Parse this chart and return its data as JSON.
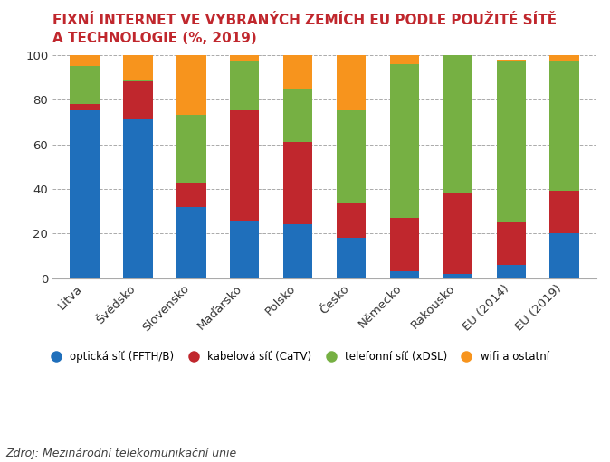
{
  "title": "FIXNÍ INTERNET VE VYBRANÝCH ZEMÍCH EU PODLE POUŽITÉ SÍTĚ\nA TECHNOLOGIE (%, 2019)",
  "categories": [
    "Litva",
    "Švédsko",
    "Slovensko",
    "Maďarsko",
    "Polsko",
    "Česko",
    "Německo",
    "Rakousko",
    "EU (2014)",
    "EU (2019)"
  ],
  "optical": [
    75,
    71,
    32,
    26,
    24,
    18,
    3,
    2,
    6,
    20
  ],
  "cable": [
    3,
    17,
    11,
    49,
    37,
    16,
    24,
    36,
    19,
    19
  ],
  "dsl": [
    17,
    1,
    30,
    22,
    24,
    41,
    69,
    62,
    72,
    58
  ],
  "wifi": [
    5,
    11,
    27,
    3,
    15,
    25,
    4,
    0,
    1,
    3
  ],
  "color_optical": "#1f6fbb",
  "color_cable": "#c0272d",
  "color_dsl": "#76b043",
  "color_wifi": "#f7941d",
  "legend_labels": [
    "optická síť (FFTH/B)",
    "kabelová síť (CaTV)",
    "telefonní síť (xDSL)",
    "wifi a ostatní"
  ],
  "source": "Zdroj: Mezinárodní telekomunikační unie",
  "ylim": [
    0,
    100
  ],
  "title_color": "#c0272d",
  "source_color": "#404040"
}
